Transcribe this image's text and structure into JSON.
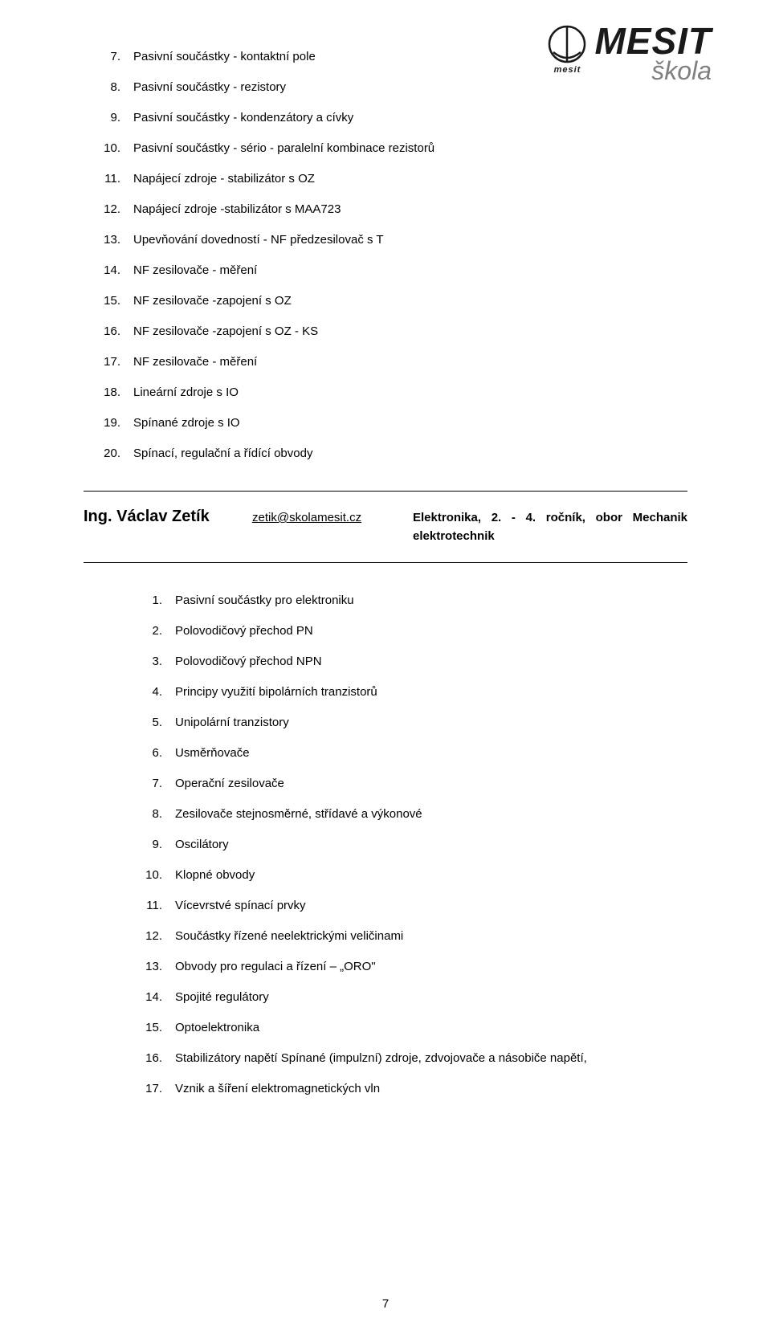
{
  "logo": {
    "small_text": "mesit",
    "brand": "MESIT",
    "sub": "škola"
  },
  "list1": {
    "start": 7,
    "items": [
      "Pasivní součástky - kontaktní pole",
      "Pasivní součástky - rezistory",
      "Pasivní součástky - kondenzátory a cívky",
      "Pasivní součástky - sério - paralelní kombinace rezistorů",
      "Napájecí zdroje - stabilizátor s OZ",
      "Napájecí zdroje -stabilizátor s MAA723",
      "Upevňování dovedností - NF předzesilovač s T",
      "NF zesilovače - měření",
      "NF zesilovače -zapojení s OZ",
      "NF zesilovače -zapojení s OZ - KS",
      "NF zesilovače - měření",
      "Lineární zdroje s IO",
      "Spínané zdroje s IO",
      "Spínací, regulační a řídící obvody"
    ]
  },
  "instructor": {
    "name": "Ing. Václav Zetík",
    "email": "zetik@skolamesit.cz",
    "subject": "Elektronika, 2. - 4. ročník, obor Mechanik elektrotechnik"
  },
  "list2": {
    "start": 1,
    "items": [
      "Pasivní součástky pro elektroniku",
      "Polovodičový přechod PN",
      "Polovodičový přechod NPN",
      "Principy využití bipolárních tranzistorů",
      "Unipolární tranzistory",
      "Usměrňovače",
      "Operační zesilovače",
      "Zesilovače stejnosměrné, střídavé a výkonové",
      "Oscilátory",
      "Klopné obvody",
      "Vícevrstvé spínací prvky",
      "Součástky řízené neelektrickými veličinami",
      "Obvody pro regulaci a řízení – „ORO\"",
      "Spojité regulátory",
      "Optoelektronika",
      "Stabilizátory napětí Spínané (impulzní) zdroje, zdvojovače a násobiče napětí,",
      "Vznik a šíření elektromagnetických vln"
    ]
  },
  "page_number": "7",
  "colors": {
    "text": "#000000",
    "gray": "#808080",
    "rule": "#000000",
    "bg": "#ffffff"
  }
}
